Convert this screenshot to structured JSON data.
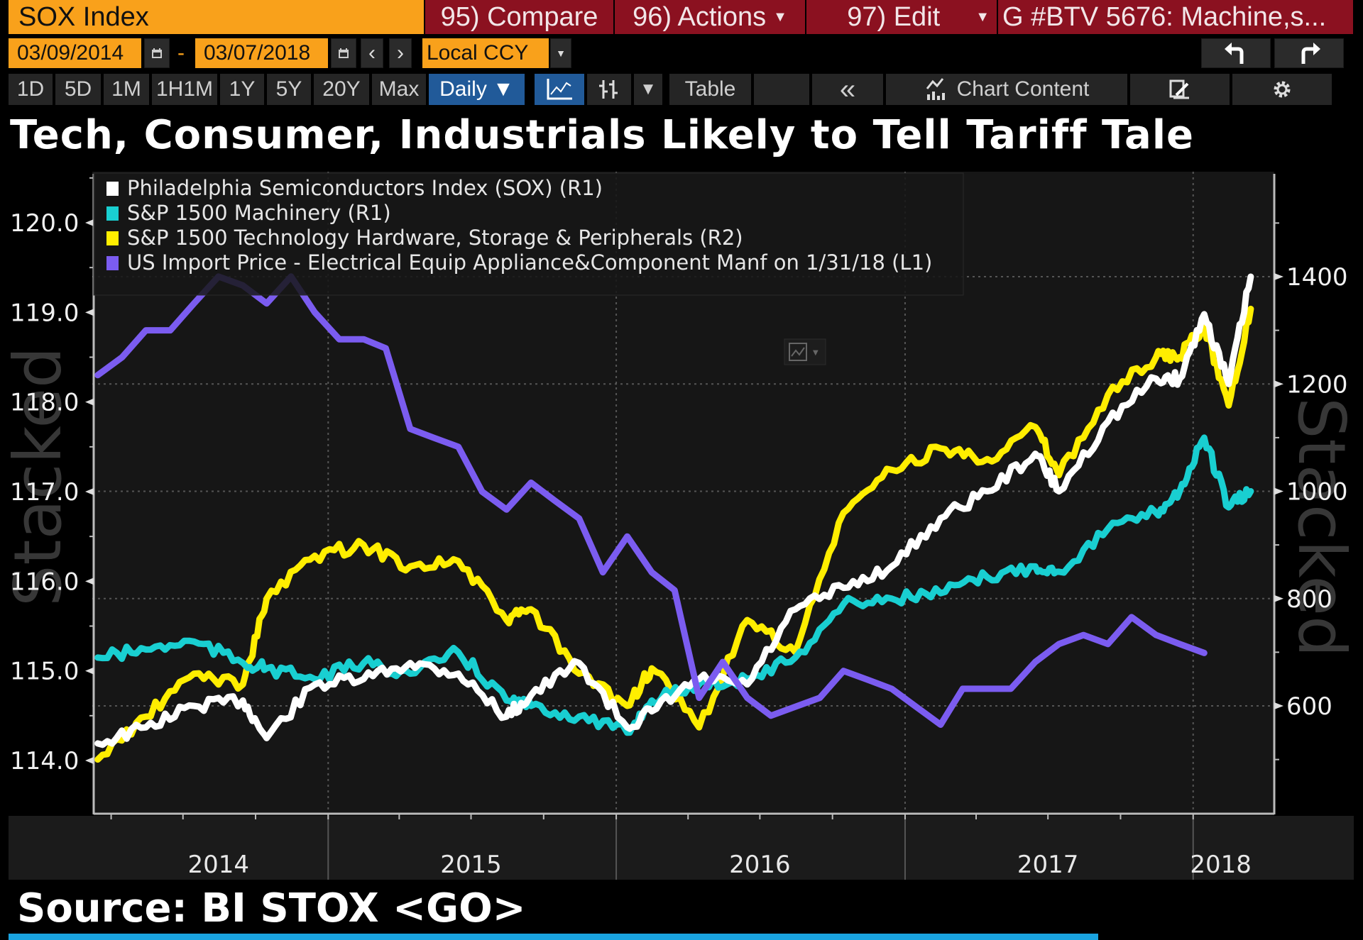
{
  "header": {
    "ticker": "SOX Index",
    "compare_label": "95) Compare",
    "actions_label": "96) Actions",
    "edit_label": "97) Edit",
    "chart_name": "G #BTV 5676: Machine,s..."
  },
  "controls": {
    "start_date": "03/09/2014",
    "end_date": "03/07/2018",
    "date_separator": "-",
    "currency": "Local CCY",
    "prev_label": "‹",
    "next_label": "›",
    "undo_icon": "undo-arrow-icon",
    "redo_icon": "redo-arrow-icon"
  },
  "toolbar": {
    "ranges": [
      "1D",
      "5D",
      "1M",
      "1H1M",
      "1Y",
      "5Y",
      "20Y",
      "Max"
    ],
    "frequency": "Daily ▼",
    "table_label": "Table",
    "collapse_label": "«",
    "chart_content_label": "Chart Content",
    "dropdown_caret": "▼"
  },
  "colors": {
    "orange": "#f9a11b",
    "red": "#8b1120",
    "active_blue": "#215a99",
    "sox": "#ffffff",
    "machinery": "#19cfd1",
    "tech_hw": "#ffee00",
    "import_price": "#7b5cf0"
  },
  "chart_data": {
    "type": "line",
    "title": "Tech, Consumer, Industrials Likely to Tell Tariff Tale",
    "source": "Source: BI STOX <GO>",
    "watermark_left": "Stacked",
    "watermark_right": "Stacked",
    "x_range": [
      "2014-03-09",
      "2018-03-07"
    ],
    "x_tick_labels": [
      "2014",
      "2015",
      "2016",
      "2017",
      "2018"
    ],
    "left_axis": {
      "name": "L1",
      "ylim": [
        113.4,
        120.7
      ],
      "ticks": [
        "114.0",
        "115.0",
        "116.0",
        "117.0",
        "118.0",
        "119.0",
        "120.0"
      ]
    },
    "right_axis": {
      "name": "R1/R2",
      "ylim": [
        400,
        1600
      ],
      "ticks": [
        "600",
        "800",
        "1000",
        "1200",
        "1400"
      ]
    },
    "grid": true,
    "legend_position": "top-left",
    "series": [
      {
        "name": "Philadelphia Semiconductors Index (SOX) (R1)",
        "axis": "right",
        "color": "#ffffff",
        "x": [
          "2014-03",
          "2014-05",
          "2014-07",
          "2014-09",
          "2014-10",
          "2014-12",
          "2015-02",
          "2015-04",
          "2015-06",
          "2015-08",
          "2015-09",
          "2015-11",
          "2016-01",
          "2016-02",
          "2016-04",
          "2016-06",
          "2016-08",
          "2016-10",
          "2016-12",
          "2017-02",
          "2017-04",
          "2017-06",
          "2017-07",
          "2017-09",
          "2017-11",
          "2017-12",
          "2018-01",
          "2018-02",
          "2018-03"
        ],
        "values": [
          530,
          560,
          600,
          610,
          540,
          640,
          650,
          680,
          660,
          580,
          620,
          680,
          560,
          590,
          650,
          640,
          780,
          820,
          860,
          950,
          1000,
          1070,
          1000,
          1130,
          1210,
          1210,
          1330,
          1200,
          1400
        ]
      },
      {
        "name": "S&P 1500 Machinery  (R1)",
        "axis": "right",
        "color": "#19cfd1",
        "x": [
          "2014-03",
          "2014-05",
          "2014-07",
          "2014-09",
          "2014-10",
          "2014-12",
          "2015-02",
          "2015-04",
          "2015-06",
          "2015-08",
          "2015-09",
          "2015-11",
          "2016-01",
          "2016-02",
          "2016-04",
          "2016-06",
          "2016-08",
          "2016-10",
          "2016-12",
          "2017-02",
          "2017-04",
          "2017-06",
          "2017-07",
          "2017-09",
          "2017-11",
          "2017-12",
          "2018-01",
          "2018-02",
          "2018-03"
        ],
        "values": [
          690,
          705,
          720,
          680,
          670,
          650,
          680,
          660,
          700,
          610,
          600,
          580,
          550,
          610,
          640,
          650,
          690,
          790,
          800,
          810,
          840,
          860,
          850,
          930,
          960,
          1000,
          1100,
          970,
          1000
        ]
      },
      {
        "name": "S&P 1500 Technology Hardware, Storage & Peripherals (R2)",
        "axis": "right",
        "color": "#ffee00",
        "x": [
          "2014-03",
          "2014-05",
          "2014-07",
          "2014-09",
          "2014-10",
          "2014-12",
          "2015-02",
          "2015-04",
          "2015-06",
          "2015-08",
          "2015-09",
          "2015-11",
          "2016-01",
          "2016-02",
          "2016-04",
          "2016-06",
          "2016-08",
          "2016-10",
          "2016-12",
          "2017-02",
          "2017-04",
          "2017-06",
          "2017-07",
          "2017-09",
          "2017-11",
          "2017-12",
          "2018-01",
          "2018-02",
          "2018-03"
        ],
        "values": [
          500,
          580,
          660,
          640,
          800,
          880,
          900,
          860,
          870,
          760,
          780,
          660,
          600,
          670,
          560,
          760,
          700,
          960,
          1040,
          1080,
          1060,
          1120,
          1030,
          1180,
          1250,
          1250,
          1310,
          1160,
          1340
        ]
      },
      {
        "name": "US Import Price - Electrical Equip Appliance&Component Manf on 1/31/18 (L1)",
        "axis": "left",
        "color": "#7b5cf0",
        "x": [
          "2014-03",
          "2014-04",
          "2014-05",
          "2014-06",
          "2014-07",
          "2014-08",
          "2014-09",
          "2014-10",
          "2014-11",
          "2014-12",
          "2015-01",
          "2015-02",
          "2015-03",
          "2015-04",
          "2015-05",
          "2015-06",
          "2015-07",
          "2015-08",
          "2015-09",
          "2015-10",
          "2015-11",
          "2015-12",
          "2016-01",
          "2016-02",
          "2016-03",
          "2016-04",
          "2016-05",
          "2016-06",
          "2016-07",
          "2016-08",
          "2016-09",
          "2016-10",
          "2016-11",
          "2016-12",
          "2017-01",
          "2017-02",
          "2017-03",
          "2017-04",
          "2017-05",
          "2017-06",
          "2017-07",
          "2017-08",
          "2017-09",
          "2017-10",
          "2017-11",
          "2017-12",
          "2018-01"
        ],
        "values": [
          118.3,
          118.5,
          118.8,
          118.8,
          119.1,
          119.4,
          119.3,
          119.1,
          119.4,
          119.0,
          118.7,
          118.7,
          118.6,
          117.7,
          117.6,
          117.5,
          117.0,
          116.8,
          117.1,
          116.9,
          116.7,
          116.1,
          116.5,
          116.1,
          115.9,
          114.7,
          115.1,
          114.7,
          114.5,
          114.6,
          114.7,
          115.0,
          114.9,
          114.8,
          114.6,
          114.4,
          114.8,
          114.8,
          114.8,
          115.1,
          115.3,
          115.4,
          115.3,
          115.6,
          115.4,
          115.3,
          115.2
        ]
      }
    ]
  }
}
